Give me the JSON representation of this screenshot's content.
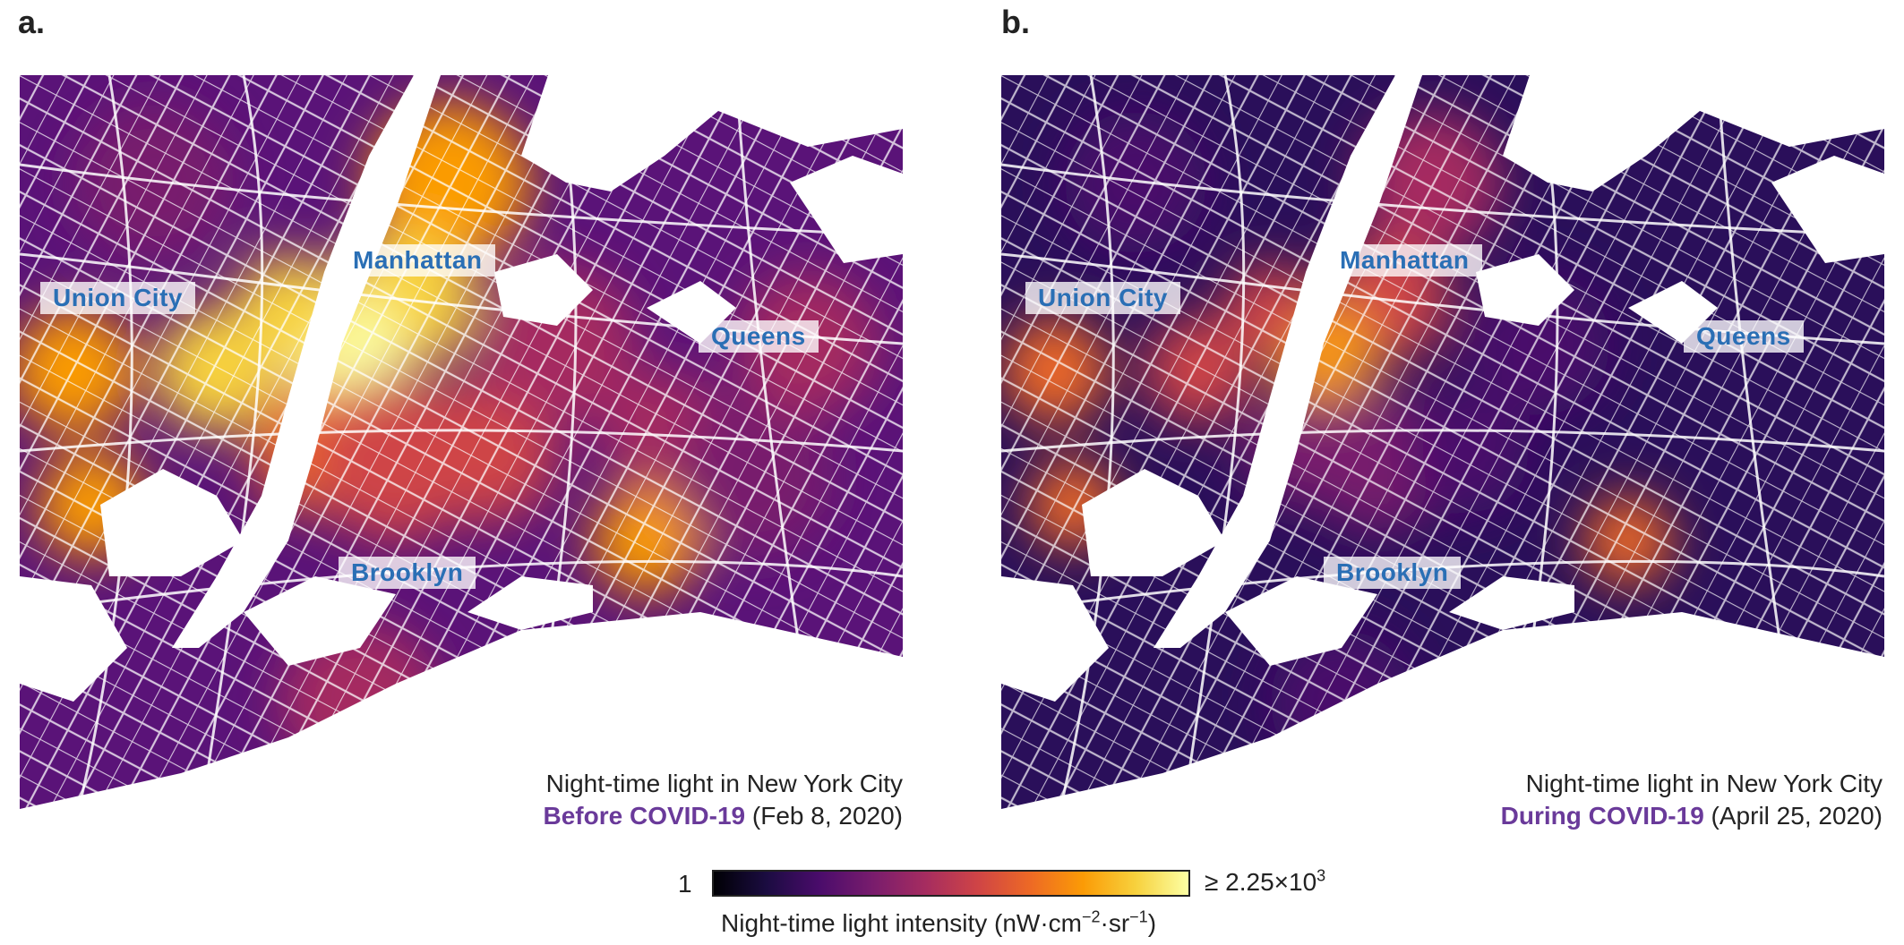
{
  "panels": [
    {
      "letter": "a.",
      "places": {
        "union_city": "Union City",
        "manhattan": "Manhattan",
        "queens": "Queens",
        "brooklyn": "Brooklyn"
      },
      "caption_line1": "Night-time light in New York City",
      "highlight": "Before COVID-19",
      "date": " (Feb 8, 2020)",
      "brightness": "high"
    },
    {
      "letter": "b.",
      "places": {
        "union_city": "Union City",
        "manhattan": "Manhattan",
        "queens": "Queens",
        "brooklyn": "Brooklyn"
      },
      "caption_line1": "Night-time light in New York City",
      "highlight": "During COVID-19",
      "date": " (April 25, 2020)",
      "brightness": "low"
    }
  ],
  "colorbar": {
    "min_label": "1",
    "max_prefix": "≥ 2.25×10",
    "max_exp": "3",
    "label_main": "Night-time light intensity (nW·cm",
    "label_exp1": "−2",
    "label_mid": "·sr",
    "label_exp2": "−1",
    "label_end": ")",
    "colormap": "inferno",
    "colors": [
      "#000004",
      "#1b0c41",
      "#4a0c6b",
      "#781c6d",
      "#a52c60",
      "#cf4446",
      "#ed6925",
      "#fb9b06",
      "#f7d13d",
      "#fcffa4"
    ]
  },
  "colors": {
    "place_label": "#2a6fb5",
    "highlight": "#6a3a9a",
    "water": "#ffffff"
  }
}
